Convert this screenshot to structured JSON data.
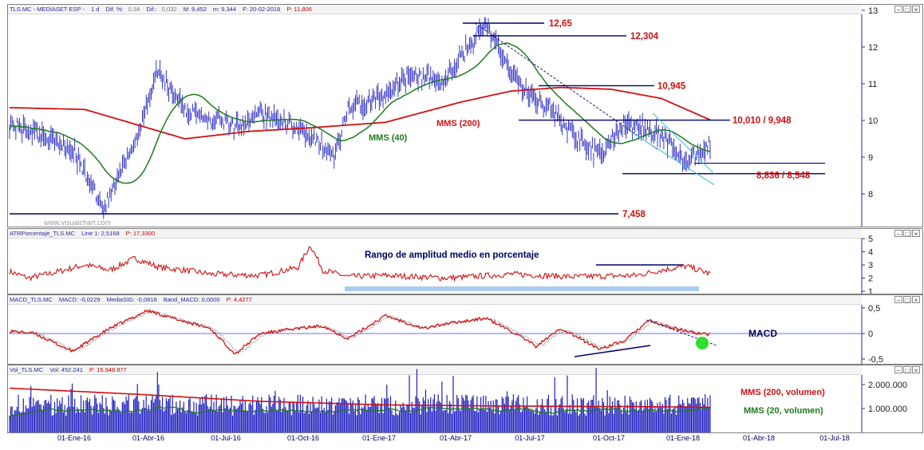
{
  "colors": {
    "price": "#1f1fbf",
    "mms40": "#1d7a1d",
    "mms200": "#d01010",
    "level": "#00006a",
    "label": "#d01010",
    "band": "#a9cdea",
    "atr": "#d01010",
    "macd": "#d01010",
    "signal": "#9a9a9a"
  },
  "price_panel": {
    "header": {
      "symbol": "TLS.MC - MEDIASET ESP -",
      "interval": "1 d",
      "dif_pct_label": "Dif. %:",
      "dif_pct": "0,34",
      "dif_label": "Dif.:",
      "dif": "0,032",
      "max": "M: 9,452",
      "min": "m: 9,344",
      "date": "F: 20-02-2018",
      "last": "P: 11,806"
    },
    "watermark": "www.visualchart.com",
    "annotations": {
      "mms40": "MMS (40)",
      "mms200": "MMS (200)"
    },
    "levels": [
      {
        "label": "12,65",
        "value": 12.65
      },
      {
        "label": "12,304",
        "value": 12.304
      },
      {
        "label": "10,945",
        "value": 10.945
      },
      {
        "label": "10,010 / 9,948",
        "value": 10.01
      },
      {
        "label": "8,836 / 8,548",
        "value": 8.55
      },
      {
        "label": "7,458",
        "value": 7.458
      }
    ],
    "yticks": [
      "13",
      "12",
      "11",
      "10",
      "9",
      "8"
    ]
  },
  "atr_panel": {
    "header": {
      "name": "ATRPorcentaje_TLS.MC",
      "line": "Line 1: 2,5168",
      "last": "P: 17,3300"
    },
    "title": "Rango de amplitud medio en porcentaje",
    "yticks": [
      "5",
      "4",
      "3",
      "2",
      "1"
    ]
  },
  "macd_panel": {
    "header": {
      "name": "MACD_TLS.MC",
      "macd": "MACD: -0,0229",
      "signal": "MediaSIG: -0,0818",
      "band": "Band_MACD: 0,0000",
      "last": "P: 4,4277"
    },
    "title": "MACD",
    "yticks": [
      "0,5",
      "0",
      "-0,5"
    ]
  },
  "vol_panel": {
    "header": {
      "name": "Vol_TLS.MC",
      "vol": "Vol: 452.241",
      "last": "P: 15.948.877"
    },
    "annotations": {
      "mms200": "MMS (200, volumen)",
      "mms20": "MMS (20, volumen)"
    },
    "yticks": [
      "2.000.000",
      "1.000.000"
    ]
  },
  "x_axis": {
    "dates": [
      "01-Ene-16",
      "01-Abr-16",
      "01-Jul-16",
      "01-Oct-16",
      "01-Ene-17",
      "01-Abr-17",
      "01-Jul-17",
      "01-Oct-17",
      "01-Ene-18",
      "01-Abr-18",
      "01-Jul-18"
    ]
  },
  "chart_data": [
    {
      "type": "line",
      "title": "TLS.MC - MEDIASET ESP - 1 d",
      "x": [
        "2015-10",
        "2016-01",
        "2016-02",
        "2016-04",
        "2016-05",
        "2016-07",
        "2016-10",
        "2016-11",
        "2017-01",
        "2017-02",
        "2017-04",
        "2017-05",
        "2017-07",
        "2017-08",
        "2017-10",
        "2017-11",
        "2018-01",
        "2018-02"
      ],
      "series": [
        {
          "name": "",
          "values": [
            9.9,
            9.6,
            7.6,
            11.4,
            10.4,
            10.0,
            9.8,
            9.0,
            10.3,
            10.7,
            12.65,
            11.7,
            10.8,
            10.3,
            9.0,
            9.9,
            8.8,
            9.4
          ]
        },
        {
          "name": "MMS (40)",
          "values": [
            9.5,
            9.3,
            8.3,
            10.0,
            11.0,
            10.2,
            10.1,
            9.5,
            9.8,
            10.6,
            11.9,
            11.6,
            10.8,
            10.4,
            9.6,
            9.5,
            9.5,
            9.3
          ]
        },
        {
          "name": "MMS (200)",
          "values": [
            10.35,
            10.25,
            9.8,
            9.5,
            9.6,
            9.8,
            9.8,
            9.85,
            10.0,
            10.2,
            10.6,
            10.8,
            10.85,
            10.9,
            10.85,
            10.7,
            10.4,
            10.0
          ]
        }
      ],
      "ylim": [
        7,
        13
      ],
      "levels": [
        12.65,
        12.304,
        10.945,
        10.01,
        9.948,
        8.836,
        8.548,
        7.458
      ]
    },
    {
      "type": "line",
      "title": "ATRPorcentaje_TLS.MC",
      "x": [
        "2015-10",
        "2016-01",
        "2016-03",
        "2016-05",
        "2016-07",
        "2016-10",
        "2017-01",
        "2017-04",
        "2017-07",
        "2017-10",
        "2017-12",
        "2018-02"
      ],
      "series": [
        {
          "name": "Line 1",
          "values": [
            2.5,
            2.0,
            3.0,
            2.1,
            4.5,
            2.0,
            2.3,
            2.1,
            2.0,
            2.6,
            2.9,
            2.52
          ]
        }
      ],
      "ylim": [
        1,
        5
      ]
    },
    {
      "type": "line",
      "title": "MACD_TLS.MC",
      "x": [
        "2015-10",
        "2016-01",
        "2016-03",
        "2016-05",
        "2016-07",
        "2016-10",
        "2017-01",
        "2017-04",
        "2017-07",
        "2017-10",
        "2017-12",
        "2018-02"
      ],
      "series": [
        {
          "name": "MACD",
          "values": [
            0.05,
            -0.35,
            0.45,
            0.1,
            -0.4,
            0.15,
            0.35,
            0.25,
            -0.2,
            -0.3,
            0.2,
            -0.02
          ]
        },
        {
          "name": "MediaSIG",
          "values": [
            0.02,
            -0.3,
            0.4,
            0.12,
            -0.35,
            0.12,
            0.3,
            0.22,
            -0.15,
            -0.25,
            0.15,
            -0.08
          ]
        }
      ],
      "ylim": [
        -0.6,
        0.6
      ]
    },
    {
      "type": "bar",
      "title": "Vol_TLS.MC",
      "x": [
        "2015-10",
        "2016-04",
        "2016-10",
        "2017-04",
        "2017-10",
        "2018-02"
      ],
      "series": [
        {
          "name": "Vol",
          "values": [
            1100000,
            1300000,
            900000,
            1400000,
            1200000,
            452241
          ]
        },
        {
          "name": "MMS (200, volumen)",
          "values": [
            1850000,
            1500000,
            1150000,
            1100000,
            1080000,
            1050000
          ]
        },
        {
          "name": "MMS (20, volumen)",
          "values": [
            1300000,
            1100000,
            850000,
            1050000,
            1000000,
            800000
          ]
        }
      ],
      "ylim": [
        0,
        2400000
      ]
    }
  ]
}
